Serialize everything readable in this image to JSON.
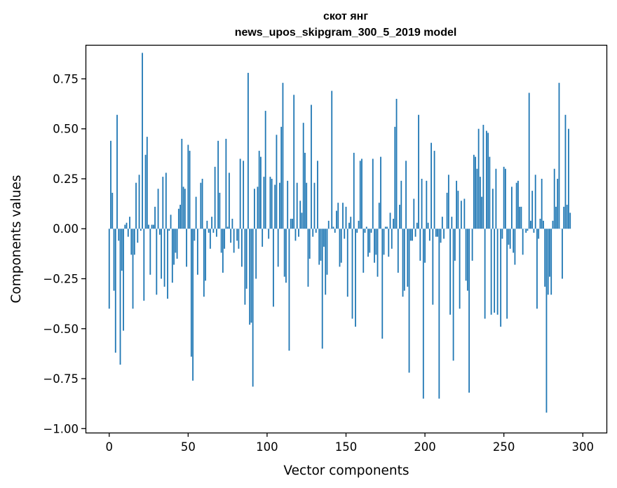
{
  "chart_data": {
    "type": "bar",
    "title": [
      "скот янг",
      "news_upos_skipgram_300_5_2019 model"
    ],
    "xlabel": "Vector components",
    "ylabel": "Components values",
    "xlim": [
      -15,
      315
    ],
    "ylim": [
      -1.02,
      0.92
    ],
    "xticks": [
      0,
      50,
      100,
      150,
      200,
      250,
      300
    ],
    "yticks": [
      -1.0,
      -0.75,
      -0.5,
      -0.25,
      0.0,
      0.25,
      0.5,
      0.75
    ],
    "ytick_labels": [
      "−1.00",
      "−0.75",
      "−0.50",
      "−0.25",
      "0.00",
      "0.25",
      "0.50",
      "0.75"
    ],
    "bar_color": "#1f77b4",
    "values": [
      -0.4,
      0.44,
      0.18,
      -0.31,
      -0.62,
      0.57,
      -0.06,
      -0.68,
      -0.21,
      -0.51,
      0.02,
      0.03,
      -0.04,
      0.06,
      -0.13,
      -0.4,
      -0.13,
      0.23,
      -0.07,
      0.27,
      -0.01,
      0.88,
      -0.36,
      0.37,
      0.46,
      0.02,
      -0.23,
      0.02,
      0.02,
      0.11,
      -0.33,
      0.2,
      -0.03,
      -0.25,
      0.26,
      -0.29,
      0.28,
      -0.35,
      -0.01,
      0.07,
      -0.27,
      -0.18,
      -0.12,
      -0.15,
      0.1,
      0.12,
      0.45,
      0.21,
      0.2,
      -0.19,
      0.42,
      0.39,
      -0.64,
      -0.76,
      -0.06,
      0.16,
      -0.23,
      0.0,
      0.23,
      0.25,
      -0.34,
      -0.26,
      0.04,
      -0.02,
      -0.1,
      0.06,
      -0.02,
      0.31,
      -0.04,
      0.44,
      0.18,
      -0.12,
      -0.22,
      -0.1,
      0.45,
      0.01,
      0.28,
      -0.07,
      0.05,
      -0.12,
      0.0,
      -0.06,
      -0.1,
      0.35,
      -0.19,
      0.34,
      -0.38,
      -0.3,
      0.78,
      -0.48,
      -0.47,
      -0.79,
      0.2,
      -0.25,
      0.21,
      0.39,
      0.36,
      -0.09,
      0.26,
      0.59,
      0.0,
      -0.05,
      0.26,
      0.25,
      -0.39,
      0.22,
      0.47,
      -0.19,
      0.23,
      0.51,
      0.73,
      -0.24,
      -0.27,
      0.24,
      -0.61,
      0.05,
      0.05,
      0.67,
      -0.06,
      0.23,
      -0.04,
      0.14,
      0.08,
      0.53,
      0.38,
      0.23,
      -0.29,
      -0.15,
      0.62,
      -0.04,
      0.23,
      -0.02,
      0.34,
      -0.18,
      -0.16,
      -0.6,
      -0.09,
      -0.33,
      -0.23,
      0.04,
      0.0,
      0.69,
      0.01,
      -0.02,
      0.09,
      0.13,
      -0.19,
      -0.17,
      0.13,
      -0.05,
      0.11,
      -0.34,
      0.03,
      0.06,
      -0.45,
      0.38,
      -0.49,
      -0.02,
      0.04,
      0.34,
      0.35,
      -0.22,
      -0.02,
      0.01,
      -0.14,
      -0.12,
      -0.02,
      0.35,
      -0.17,
      -0.13,
      -0.24,
      0.13,
      0.36,
      -0.55,
      -0.13,
      0.01,
      0.01,
      -0.14,
      0.08,
      -0.1,
      0.05,
      0.51,
      0.65,
      -0.22,
      0.12,
      0.24,
      -0.34,
      -0.31,
      0.34,
      -0.29,
      -0.72,
      -0.06,
      -0.06,
      0.15,
      -0.04,
      0.03,
      0.57,
      -0.16,
      0.25,
      -0.85,
      -0.17,
      0.24,
      0.03,
      -0.06,
      0.43,
      -0.38,
      0.39,
      -0.04,
      -0.04,
      -0.85,
      -0.07,
      0.06,
      -0.05,
      0.0,
      0.18,
      0.27,
      -0.43,
      0.06,
      -0.66,
      -0.16,
      0.24,
      0.19,
      -0.4,
      0.14,
      0.0,
      0.15,
      -0.26,
      -0.31,
      -0.82,
      0.0,
      -0.16,
      0.37,
      0.36,
      0.3,
      0.5,
      0.26,
      0.16,
      0.52,
      -0.45,
      0.49,
      0.48,
      0.36,
      -0.43,
      0.2,
      -0.42,
      0.3,
      -0.43,
      0.0,
      -0.49,
      -0.05,
      0.31,
      0.3,
      -0.45,
      -0.08,
      -0.1,
      0.21,
      -0.12,
      -0.18,
      0.23,
      0.24,
      0.11,
      0.11,
      -0.13,
      0.0,
      -0.02,
      -0.01,
      0.68,
      0.04,
      0.19,
      -0.02,
      0.27,
      -0.4,
      -0.05,
      0.05,
      0.25,
      0.04,
      -0.29,
      -0.92,
      -0.33,
      -0.24,
      -0.33,
      0.04,
      0.3,
      0.11,
      0.25,
      0.73,
      0.0,
      -0.25,
      0.11,
      0.57,
      0.12,
      0.5,
      0.08
    ]
  }
}
